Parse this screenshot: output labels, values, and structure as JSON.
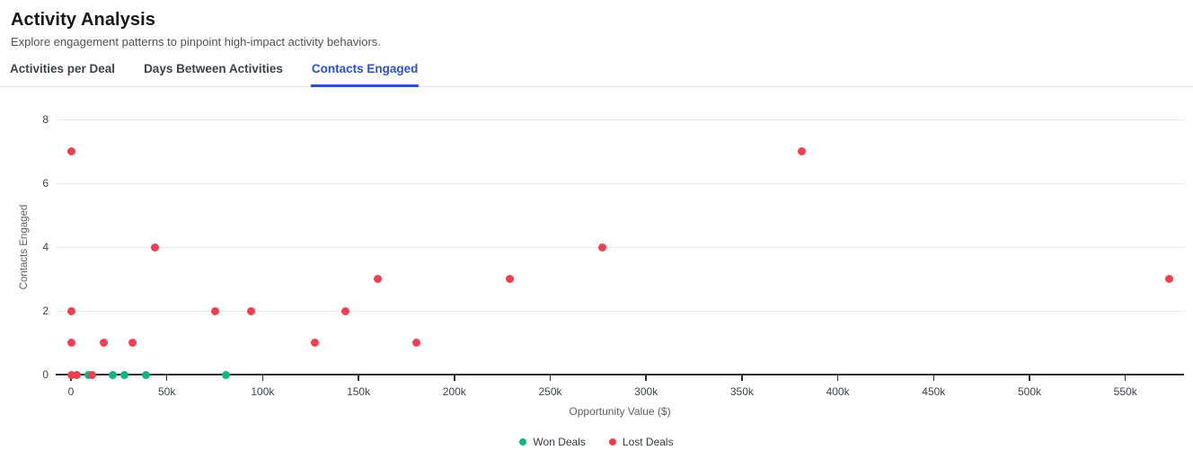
{
  "page": {
    "title": "Activity Analysis",
    "subtitle": "Explore engagement patterns to pinpoint high-impact activity behaviors."
  },
  "tabs": [
    {
      "label": "Activities per Deal",
      "active": false
    },
    {
      "label": "Days Between Activities",
      "active": false
    },
    {
      "label": "Contacts Engaged",
      "active": true
    }
  ],
  "colors": {
    "accent_blue": "#2b4ed2",
    "won_green": "#10b585",
    "lost_red": "#f23f4f",
    "gridline": "#e9eaec",
    "axis": "#2b2f35"
  },
  "chart_data": {
    "type": "scatter",
    "title": "",
    "xlabel": "Opportunity Value ($)",
    "ylabel": "Contacts Engaged",
    "xlim": [
      0,
      581000
    ],
    "ylim": [
      0,
      8
    ],
    "x_tick_values": [
      0,
      50000,
      100000,
      150000,
      200000,
      250000,
      300000,
      350000,
      400000,
      450000,
      500000,
      550000
    ],
    "x_tick_labels": [
      "0",
      "50k",
      "100k",
      "150k",
      "200k",
      "250k",
      "300k",
      "350k",
      "400k",
      "450k",
      "500k",
      "550k"
    ],
    "y_tick_values": [
      0,
      2,
      4,
      6,
      8
    ],
    "grid": "horizontal",
    "legend_position": "bottom",
    "series": [
      {
        "name": "Won Deals",
        "color": "#10b585",
        "points": [
          [
            9000,
            0
          ],
          [
            22000,
            0
          ],
          [
            28000,
            0
          ],
          [
            39000,
            0
          ],
          [
            81000,
            0
          ]
        ]
      },
      {
        "name": "Lost Deals",
        "color": "#f23f4f",
        "points": [
          [
            0,
            0
          ],
          [
            3000,
            0
          ],
          [
            11000,
            0
          ],
          [
            0,
            1
          ],
          [
            17000,
            1
          ],
          [
            32000,
            1
          ],
          [
            0,
            2
          ],
          [
            44000,
            4
          ],
          [
            75000,
            2
          ],
          [
            94000,
            2
          ],
          [
            127000,
            1
          ],
          [
            143000,
            2
          ],
          [
            160000,
            3
          ],
          [
            180000,
            1
          ],
          [
            229000,
            3
          ],
          [
            277000,
            4
          ],
          [
            0,
            7
          ],
          [
            381000,
            7
          ],
          [
            573000,
            3
          ]
        ]
      }
    ]
  }
}
